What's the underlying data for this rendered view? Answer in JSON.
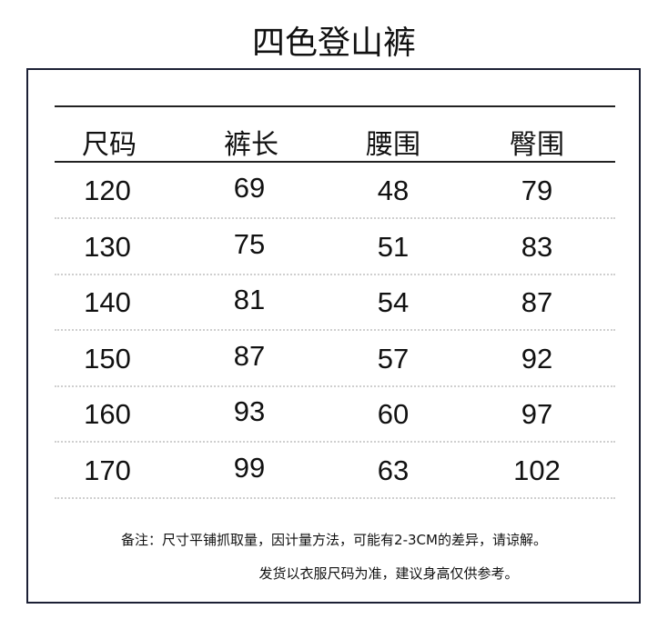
{
  "title": "四色登山裤",
  "table": {
    "headers": [
      "尺码",
      "裤长",
      "腰围",
      "臀围"
    ],
    "rows": [
      [
        "120",
        "69",
        "48",
        "79"
      ],
      [
        "130",
        "75",
        "51",
        "83"
      ],
      [
        "140",
        "81",
        "54",
        "87"
      ],
      [
        "150",
        "87",
        "57",
        "92"
      ],
      [
        "160",
        "93",
        "60",
        "97"
      ],
      [
        "170",
        "99",
        "63",
        "102"
      ]
    ]
  },
  "notes": [
    "备注：尺寸平铺抓取量，因计量方法，可能有2-3CM的差异，请谅解。",
    "发货以衣服尺码为准，建议身高仅供参考。"
  ],
  "colors": {
    "border": "#1c2035",
    "text": "#111111",
    "divider": "#cfcfcf"
  }
}
